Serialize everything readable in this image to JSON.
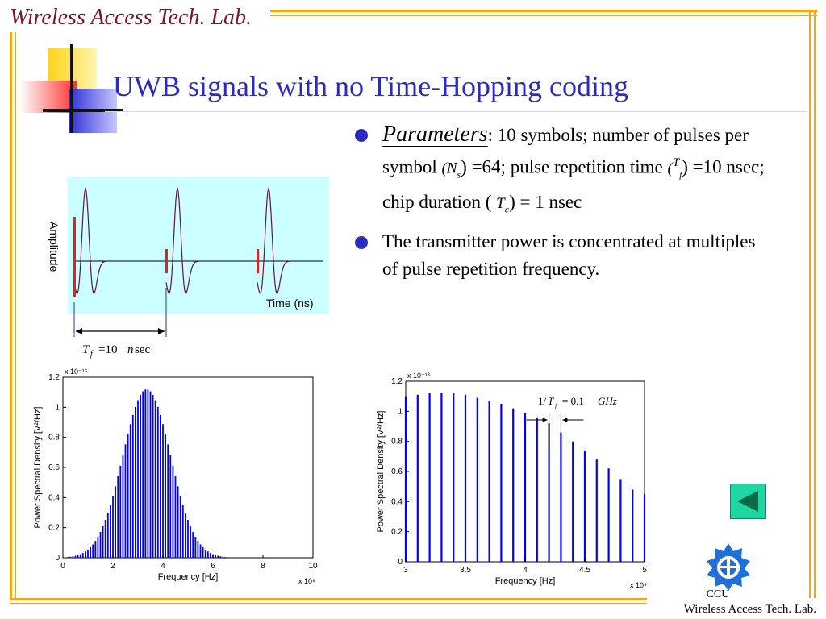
{
  "header": {
    "lab_title": "Wireless Access Tech. Lab."
  },
  "slide": {
    "title": "UWB signals with no Time-Hopping coding"
  },
  "bullets": [
    {
      "lead": "Parameters",
      "colon": ":",
      "text_parts": [
        "10 symbols; number of pulses per symbol ",
        "(",
        "N",
        "s",
        ") =64; pulse repetition time ",
        "(",
        "T",
        "f",
        ") =10 nsec; chip duration ( ",
        "T",
        "c",
        ") = 1 nsec"
      ]
    },
    {
      "text": "The transmitter power is concentrated at multiples of pulse repetition frequency."
    }
  ],
  "waveform": {
    "ylabel": "Amplitude",
    "xlabel": "Time (ns)",
    "annotation": {
      "T": "T",
      "sub": "f",
      "eq": "=10",
      "n": "n",
      "unit": "sec"
    }
  },
  "chart_data": [
    {
      "type": "bar",
      "title": "",
      "xlabel": "Frequency [Hz]",
      "ylabel": "Power Spectral Density  [V²/Hz]",
      "x_exponent": "x 10⁹",
      "y_exponent": "x 10⁻¹³",
      "xlim": [
        0,
        10
      ],
      "ylim": [
        0,
        1.2
      ],
      "xticks": [
        "0",
        "2",
        "4",
        "6",
        "8",
        "10"
      ],
      "yticks": [
        "0",
        "0.2",
        "0.4",
        "0.6",
        "0.8",
        "1",
        "1.2"
      ],
      "envelope": {
        "peak_x": 3.35,
        "peak_y": 1.12,
        "spacing": 0.1,
        "from": 0.2,
        "to": 8.8,
        "note": "lines every 0.1e9 Hz under a bell-shaped envelope"
      }
    },
    {
      "type": "bar",
      "title": "",
      "xlabel": "Frequency [Hz]",
      "ylabel": "Power Spectral Density  [V²/Hz]",
      "x_exponent": "x 10⁹",
      "y_exponent": "x 10⁻¹³",
      "xlim": [
        3,
        5
      ],
      "ylim": [
        0,
        1.2
      ],
      "xticks": [
        "3",
        "3.5",
        "4",
        "4.5",
        "5"
      ],
      "yticks": [
        "0",
        "0.2",
        "0.4",
        "0.6",
        "0.8",
        "1",
        "1.2"
      ],
      "x": [
        3.0,
        3.1,
        3.2,
        3.3,
        3.4,
        3.5,
        3.6,
        3.7,
        3.8,
        3.9,
        4.0,
        4.1,
        4.2,
        4.3,
        4.4,
        4.5,
        4.6,
        4.7,
        4.8,
        4.9,
        5.0
      ],
      "y": [
        1.1,
        1.11,
        1.12,
        1.12,
        1.12,
        1.11,
        1.09,
        1.07,
        1.05,
        1.02,
        0.99,
        0.96,
        0.92,
        0.86,
        0.8,
        0.74,
        0.68,
        0.62,
        0.55,
        0.48,
        0.45
      ],
      "annotation": "1/T_f = 0.1 GHz",
      "annotation_parts": {
        "pre": "1/",
        "T": "T",
        "sub": "f",
        "eq": "= 0.1",
        "unit": "GHz"
      }
    }
  ],
  "footer": {
    "ccu": "CCU",
    "lab": "Wireless Access Tech. Lab."
  },
  "colors": {
    "accent": "#2b2bbf",
    "frame": "#f4a51c",
    "lab": "#7a1530",
    "nav": "#1fd6a0"
  },
  "nav": {
    "icon": "triangle-left-icon"
  }
}
